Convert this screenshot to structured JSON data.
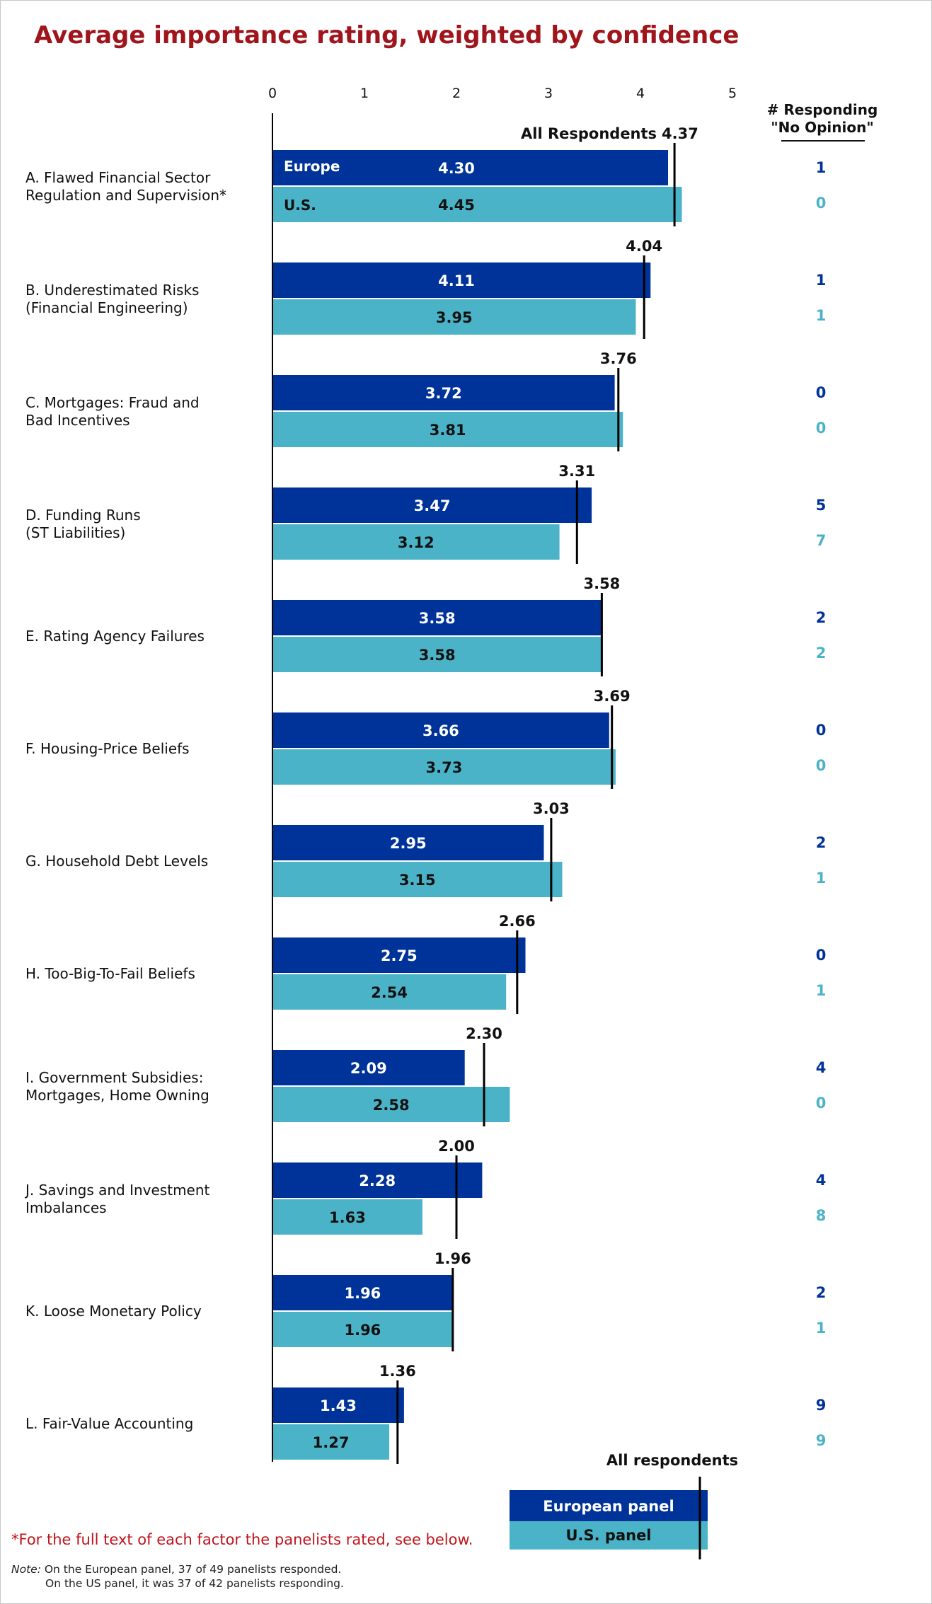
{
  "title": "Average importance rating, weighted by confidence",
  "footnote": "*For the full text of each factor the panelists rated, see below.",
  "note": {
    "label": "Note:",
    "line1": "On the European panel, 37 of 49 panelists responded.",
    "line2": "On the US panel, it was 37 of 42 panelists responding."
  },
  "colors": {
    "europe": "#003399",
    "us": "#4bb3c7",
    "title": "#a0141c",
    "footnote": "#c0141c"
  },
  "chart_data": {
    "type": "bar",
    "orientation": "horizontal",
    "title": "Average importance rating, weighted by confidence",
    "xlim": [
      0,
      5
    ],
    "xticks": [
      0,
      1,
      2,
      3,
      4,
      5
    ],
    "bar_labels": {
      "europe": "Europe",
      "us": "U.S."
    },
    "all_label": "All Respondents",
    "no_opinion_header": [
      "# Responding",
      "\"No Opinion\""
    ],
    "legend": {
      "all": "All respondents",
      "europe": "European panel",
      "us": "U.S. panel",
      "position": "bottom"
    },
    "categories": [
      {
        "label": [
          "A. Flawed Financial Sector",
          "    Regulation and Supervision*"
        ],
        "europe": 4.3,
        "us": 4.45,
        "all": 4.37,
        "noop_europe": 1,
        "noop_us": 0
      },
      {
        "label": [
          "B. Underestimated Risks",
          "    (Financial Engineering)"
        ],
        "europe": 4.11,
        "us": 3.95,
        "all": 4.04,
        "noop_europe": 1,
        "noop_us": 1
      },
      {
        "label": [
          "C. Mortgages: Fraud and",
          "    Bad Incentives"
        ],
        "europe": 3.72,
        "us": 3.81,
        "all": 3.76,
        "noop_europe": 0,
        "noop_us": 0
      },
      {
        "label": [
          "D. Funding Runs",
          "    (ST Liabilities)"
        ],
        "europe": 3.47,
        "us": 3.12,
        "all": 3.31,
        "noop_europe": 5,
        "noop_us": 7
      },
      {
        "label": [
          "E. Rating Agency Failures"
        ],
        "europe": 3.58,
        "us": 3.58,
        "all": 3.58,
        "noop_europe": 2,
        "noop_us": 2
      },
      {
        "label": [
          "F. Housing-Price Beliefs"
        ],
        "europe": 3.66,
        "us": 3.73,
        "all": 3.69,
        "noop_europe": 0,
        "noop_us": 0
      },
      {
        "label": [
          "G. Household Debt Levels"
        ],
        "europe": 2.95,
        "us": 3.15,
        "all": 3.03,
        "noop_europe": 2,
        "noop_us": 1
      },
      {
        "label": [
          "H. Too-Big-To-Fail Beliefs"
        ],
        "europe": 2.75,
        "us": 2.54,
        "all": 2.66,
        "noop_europe": 0,
        "noop_us": 1
      },
      {
        "label": [
          "I. Government Subsidies:",
          "   Mortgages, Home Owning"
        ],
        "europe": 2.09,
        "us": 2.58,
        "all": 2.3,
        "noop_europe": 4,
        "noop_us": 0
      },
      {
        "label": [
          "J. Savings and Investment",
          "   Imbalances"
        ],
        "europe": 2.28,
        "us": 1.63,
        "all": 2.0,
        "noop_europe": 4,
        "noop_us": 8
      },
      {
        "label": [
          "K. Loose Monetary Policy"
        ],
        "europe": 1.96,
        "us": 1.96,
        "all": 1.96,
        "noop_europe": 2,
        "noop_us": 1
      },
      {
        "label": [
          "L. Fair-Value Accounting"
        ],
        "europe": 1.43,
        "us": 1.27,
        "all": 1.36,
        "noop_europe": 9,
        "noop_us": 9
      }
    ]
  }
}
